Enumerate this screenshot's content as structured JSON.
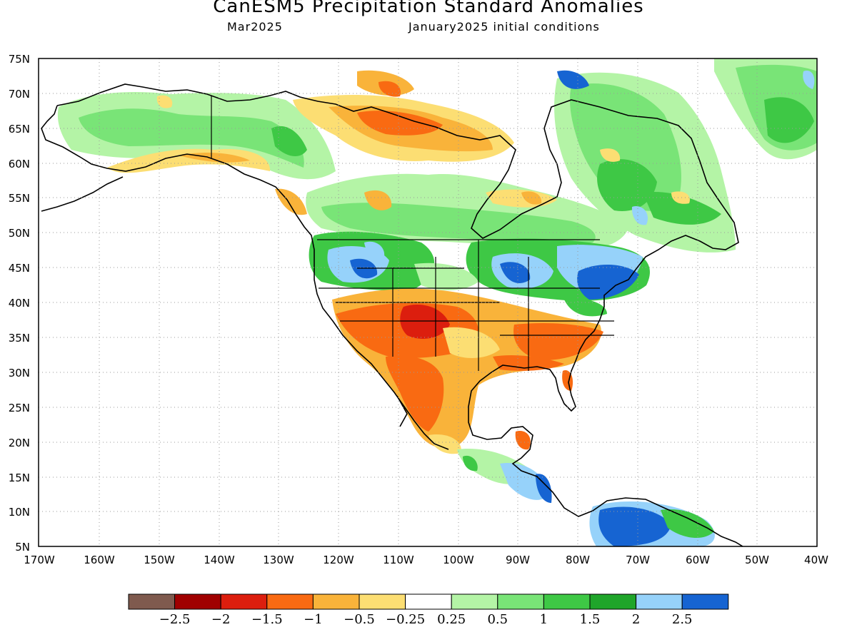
{
  "title": "CanESM5 Precipitation Standard Anomalies",
  "subtitle_left": "Mar2025",
  "subtitle_right": "January2025 initial conditions",
  "lat_ticks": [
    "75N",
    "70N",
    "65N",
    "60N",
    "55N",
    "50N",
    "45N",
    "40N",
    "35N",
    "30N",
    "25N",
    "20N",
    "15N",
    "10N",
    "5N"
  ],
  "lon_ticks": [
    "170W",
    "160W",
    "150W",
    "140W",
    "130W",
    "120W",
    "110W",
    "100W",
    "90W",
    "80W",
    "70W",
    "60W",
    "50W",
    "40W"
  ],
  "colorbar": {
    "colors": [
      "#7f5a4e",
      "#a00000",
      "#dc1e0e",
      "#f96a12",
      "#f9b33a",
      "#fcde73",
      "#ffffff",
      "#b4f4a6",
      "#79e477",
      "#3ec845",
      "#1fa52a",
      "#96d2fa",
      "#1664d2"
    ],
    "labels": [
      "−2.5",
      "−2",
      "−1.5",
      "−1",
      "−0.5",
      "−0.25",
      "0.25",
      "0.5",
      "1",
      "1.5",
      "2",
      "2.5"
    ]
  }
}
